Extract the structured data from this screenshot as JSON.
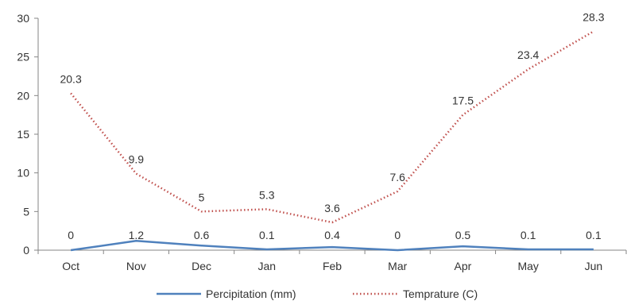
{
  "chart_data": {
    "type": "line",
    "title": "",
    "xlabel": "",
    "ylabel": "",
    "categories": [
      "Oct",
      "Nov",
      "Dec",
      "Jan",
      "Feb",
      "Mar",
      "Apr",
      "May",
      "Jun"
    ],
    "ylim": [
      0,
      30
    ],
    "yticks": [
      "0",
      "5",
      "10",
      "15",
      "20",
      "25",
      "30"
    ],
    "grid": false,
    "legend_position": "bottom",
    "series": [
      {
        "name": "Percipitation (mm)",
        "values": [
          0,
          1.2,
          0.6,
          0.1,
          0.4,
          0,
          0.5,
          0.1,
          0.1
        ],
        "labels": [
          "0",
          "1.2",
          "0.6",
          "0.1",
          "0.4",
          "0",
          "0.5",
          "0.1",
          "0.1"
        ],
        "color": "#4f81bd",
        "style": "solid"
      },
      {
        "name": "Temprature (C)",
        "values": [
          20.3,
          9.9,
          5,
          5.3,
          3.6,
          7.6,
          17.5,
          23.4,
          28.3
        ],
        "labels": [
          "20.3",
          "9.9",
          "5",
          "5.3",
          "3.6",
          "7.6",
          "17.5",
          "23.4",
          "28.3"
        ],
        "color": "#c0504d",
        "style": "dotted"
      }
    ]
  }
}
